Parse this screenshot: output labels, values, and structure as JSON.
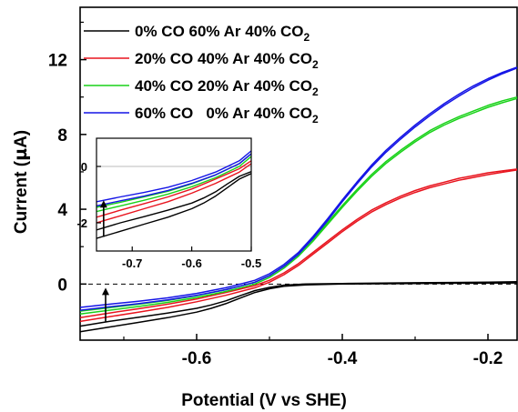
{
  "chart_data": {
    "type": "line",
    "xlabel": "Potential (V vs SHE)",
    "ylabel_parts": [
      "Current (",
      "µ",
      "A)"
    ],
    "xlim": [
      -0.76,
      -0.16
    ],
    "ylim": [
      -3.0,
      14.8
    ],
    "x_ticks": [
      -0.6,
      -0.4,
      -0.2
    ],
    "x_tick_labels": [
      "-0.6",
      "-0.4",
      "-0.2"
    ],
    "y_ticks": [
      0,
      4,
      8,
      12
    ],
    "y_tick_labels": [
      "0",
      "4",
      "8",
      "12"
    ],
    "zero_line": true,
    "arrow": {
      "x": -0.725,
      "from": -2.0,
      "to": -0.2
    },
    "legend": {
      "position": "top-left",
      "entries": [
        {
          "main": "0% CO 60% Ar 40% CO",
          "sub": "2",
          "color": "#000000"
        },
        {
          "main": "20% CO 40% Ar 40% CO",
          "sub": "2",
          "color": "#e8141e"
        },
        {
          "main": "40% CO 20% Ar 40% CO",
          "sub": "2",
          "color": "#19d219"
        },
        {
          "main": "60% CO   0% Ar 40% CO",
          "sub": "2",
          "color": "#1414e6"
        }
      ]
    },
    "series": [
      {
        "name": "0% CO 60% Ar 40% CO2",
        "color": "#000000",
        "sweeps": [
          {
            "x": [
              -0.76,
              -0.72,
              -0.68,
              -0.64,
              -0.6,
              -0.58,
              -0.56,
              -0.54,
              -0.52,
              -0.5,
              -0.48,
              -0.45,
              -0.4,
              -0.3,
              -0.2,
              -0.16
            ],
            "y": [
              -2.55,
              -2.3,
              -2.05,
              -1.8,
              -1.5,
              -1.3,
              -1.05,
              -0.75,
              -0.45,
              -0.25,
              -0.12,
              -0.05,
              0.0,
              0.03,
              0.05,
              0.06
            ]
          },
          {
            "x": [
              -0.76,
              -0.72,
              -0.68,
              -0.64,
              -0.6,
              -0.58,
              -0.56,
              -0.54,
              -0.52,
              -0.5,
              -0.48,
              -0.45,
              -0.4,
              -0.3,
              -0.2,
              -0.16
            ],
            "y": [
              -2.25,
              -2.0,
              -1.78,
              -1.55,
              -1.3,
              -1.12,
              -0.9,
              -0.62,
              -0.35,
              -0.18,
              -0.06,
              0.0,
              0.03,
              0.07,
              0.1,
              0.12
            ]
          }
        ]
      },
      {
        "name": "20% CO 40% Ar 40% CO2",
        "color": "#e8141e",
        "sweeps": [
          {
            "x": [
              -0.76,
              -0.72,
              -0.68,
              -0.64,
              -0.6,
              -0.56,
              -0.52,
              -0.5,
              -0.48,
              -0.46,
              -0.44,
              -0.42,
              -0.4,
              -0.38,
              -0.36,
              -0.34,
              -0.32,
              -0.3,
              -0.28,
              -0.26,
              -0.24,
              -0.22,
              -0.2,
              -0.18,
              -0.16
            ],
            "y": [
              -2.0,
              -1.75,
              -1.5,
              -1.25,
              -0.95,
              -0.6,
              -0.2,
              0.1,
              0.5,
              1.0,
              1.6,
              2.2,
              2.8,
              3.35,
              3.85,
              4.25,
              4.6,
              4.9,
              5.15,
              5.35,
              5.55,
              5.7,
              5.85,
              5.98,
              6.1
            ]
          },
          {
            "x": [
              -0.76,
              -0.72,
              -0.68,
              -0.64,
              -0.6,
              -0.56,
              -0.52,
              -0.5,
              -0.48,
              -0.46,
              -0.44,
              -0.42,
              -0.4,
              -0.38,
              -0.36,
              -0.34,
              -0.32,
              -0.3,
              -0.28,
              -0.26,
              -0.24,
              -0.22,
              -0.2,
              -0.18,
              -0.16
            ],
            "y": [
              -1.8,
              -1.55,
              -1.32,
              -1.08,
              -0.8,
              -0.45,
              -0.08,
              0.2,
              0.6,
              1.1,
              1.7,
              2.3,
              2.9,
              3.45,
              3.95,
              4.35,
              4.7,
              5.0,
              5.25,
              5.45,
              5.65,
              5.8,
              5.95,
              6.05,
              6.15
            ]
          }
        ]
      },
      {
        "name": "40% CO 20% Ar 40% CO2",
        "color": "#19d219",
        "sweeps": [
          {
            "x": [
              -0.76,
              -0.72,
              -0.68,
              -0.64,
              -0.6,
              -0.56,
              -0.52,
              -0.5,
              -0.48,
              -0.46,
              -0.44,
              -0.42,
              -0.4,
              -0.38,
              -0.36,
              -0.34,
              -0.32,
              -0.3,
              -0.28,
              -0.26,
              -0.24,
              -0.22,
              -0.2,
              -0.18,
              -0.16
            ],
            "y": [
              -1.6,
              -1.4,
              -1.2,
              -0.98,
              -0.72,
              -0.4,
              0.0,
              0.35,
              0.85,
              1.5,
              2.3,
              3.2,
              4.1,
              4.95,
              5.75,
              6.45,
              7.05,
              7.6,
              8.1,
              8.5,
              8.85,
              9.15,
              9.45,
              9.7,
              9.92
            ]
          },
          {
            "x": [
              -0.76,
              -0.72,
              -0.68,
              -0.64,
              -0.6,
              -0.56,
              -0.52,
              -0.5,
              -0.48,
              -0.46,
              -0.44,
              -0.42,
              -0.4,
              -0.38,
              -0.36,
              -0.34,
              -0.32,
              -0.3,
              -0.28,
              -0.26,
              -0.24,
              -0.22,
              -0.2,
              -0.18,
              -0.16
            ],
            "y": [
              -1.45,
              -1.27,
              -1.08,
              -0.88,
              -0.62,
              -0.3,
              0.1,
              0.45,
              0.95,
              1.6,
              2.4,
              3.3,
              4.2,
              5.05,
              5.85,
              6.55,
              7.15,
              7.7,
              8.2,
              8.6,
              8.95,
              9.25,
              9.55,
              9.8,
              10.0
            ]
          }
        ]
      },
      {
        "name": "60% CO 0% Ar 40% CO2",
        "color": "#1414e6",
        "sweeps": [
          {
            "x": [
              -0.76,
              -0.72,
              -0.68,
              -0.64,
              -0.6,
              -0.56,
              -0.52,
              -0.5,
              -0.48,
              -0.46,
              -0.44,
              -0.42,
              -0.4,
              -0.38,
              -0.36,
              -0.34,
              -0.32,
              -0.3,
              -0.28,
              -0.26,
              -0.24,
              -0.22,
              -0.2,
              -0.18,
              -0.16
            ],
            "y": [
              -1.4,
              -1.22,
              -1.05,
              -0.85,
              -0.6,
              -0.3,
              0.1,
              0.45,
              0.95,
              1.6,
              2.45,
              3.4,
              4.4,
              5.35,
              6.25,
              7.05,
              7.75,
              8.4,
              9.0,
              9.55,
              10.05,
              10.5,
              10.9,
              11.25,
              11.55
            ]
          },
          {
            "x": [
              -0.76,
              -0.72,
              -0.68,
              -0.64,
              -0.6,
              -0.56,
              -0.52,
              -0.5,
              -0.48,
              -0.46,
              -0.44,
              -0.42,
              -0.4,
              -0.38,
              -0.36,
              -0.34,
              -0.32,
              -0.3,
              -0.28,
              -0.26,
              -0.24,
              -0.22,
              -0.2,
              -0.18,
              -0.16
            ],
            "y": [
              -1.25,
              -1.08,
              -0.92,
              -0.74,
              -0.5,
              -0.2,
              0.2,
              0.55,
              1.05,
              1.7,
              2.55,
              3.5,
              4.5,
              5.45,
              6.35,
              7.15,
              7.85,
              8.5,
              9.1,
              9.65,
              10.15,
              10.6,
              10.98,
              11.32,
              11.6
            ]
          }
        ]
      }
    ],
    "inset": {
      "xlim": [
        -0.76,
        -0.5
      ],
      "ylim": [
        -3.0,
        1.0
      ],
      "x_ticks": [
        -0.7,
        -0.6,
        -0.5
      ],
      "x_tick_labels": [
        "-0.7",
        "-0.6",
        "-0.5"
      ],
      "y_ticks": [
        -2,
        0
      ],
      "y_tick_labels": [
        "-2",
        "0"
      ],
      "zero_line": true,
      "arrow": {
        "x": -0.748,
        "from": -2.5,
        "to": -1.2
      }
    }
  }
}
